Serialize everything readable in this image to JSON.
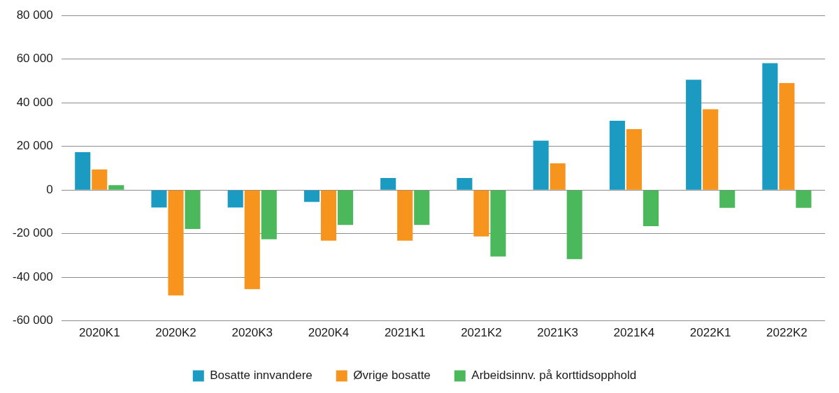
{
  "chart_data": {
    "type": "bar",
    "categories": [
      "2020K1",
      "2020K2",
      "2020K3",
      "2020K4",
      "2021K1",
      "2021K2",
      "2021K3",
      "2021K4",
      "2022K1",
      "2022K2"
    ],
    "series": [
      {
        "name": "Bosatte innvandere",
        "color": "#1b9bc2",
        "values": [
          17300,
          -8000,
          -8000,
          -5500,
          5500,
          5500,
          22600,
          31700,
          50500,
          58100
        ]
      },
      {
        "name": "Øvrige bosatte",
        "color": "#f7941d",
        "values": [
          9400,
          -48400,
          -45500,
          -23200,
          -23200,
          -21300,
          12200,
          27900,
          37000,
          49000
        ]
      },
      {
        "name": "Arbeidsinnv. på korttidsopphold",
        "color": "#4cb85c",
        "values": [
          2200,
          -17900,
          -22600,
          -16000,
          -16000,
          -30500,
          -31700,
          -16600,
          -8200,
          -8200
        ]
      }
    ],
    "ylim": [
      -60000,
      80000
    ],
    "yticks": [
      {
        "value": -60000,
        "label": "-60 000"
      },
      {
        "value": -40000,
        "label": "-40 000"
      },
      {
        "value": -20000,
        "label": "-20 000"
      },
      0,
      {
        "value": 20000,
        "label": "20 000"
      },
      {
        "value": 40000,
        "label": "40 000"
      },
      {
        "value": 60000,
        "label": "60 000"
      },
      {
        "value": 80000,
        "label": "80 000"
      }
    ],
    "grid": true,
    "legend": "bottom"
  }
}
